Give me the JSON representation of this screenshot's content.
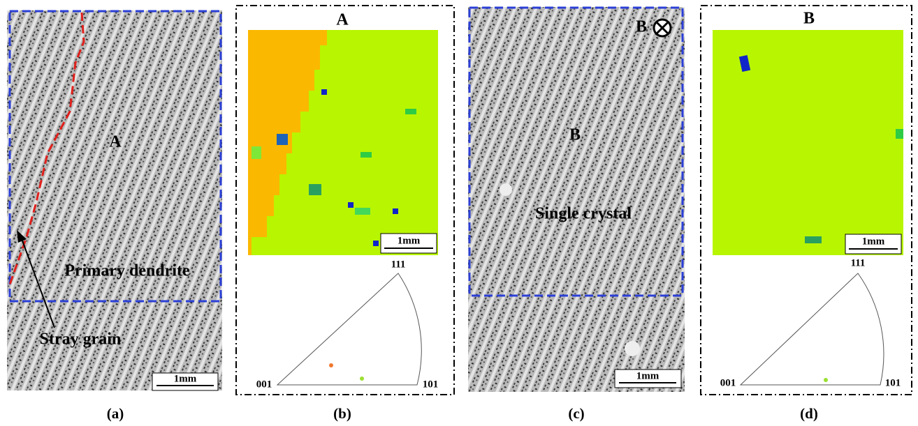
{
  "panels": [
    {
      "caption": "(a)",
      "region_label": "A",
      "annotations": [
        "Primary dendrite",
        "Stray grain"
      ],
      "scale_bar": "1mm"
    },
    {
      "caption": "(b)",
      "map_title": "A",
      "scale_bar": "1mm",
      "ipf_corners": [
        "111",
        "001",
        "101"
      ]
    },
    {
      "caption": "(c)",
      "region_label": "B",
      "annotations": [
        "Single crystal"
      ],
      "view_label": "B",
      "scale_bar": "1mm"
    },
    {
      "caption": "(d)",
      "map_title": "B",
      "scale_bar": "1mm",
      "ipf_corners": [
        "111",
        "001",
        "101"
      ]
    }
  ]
}
